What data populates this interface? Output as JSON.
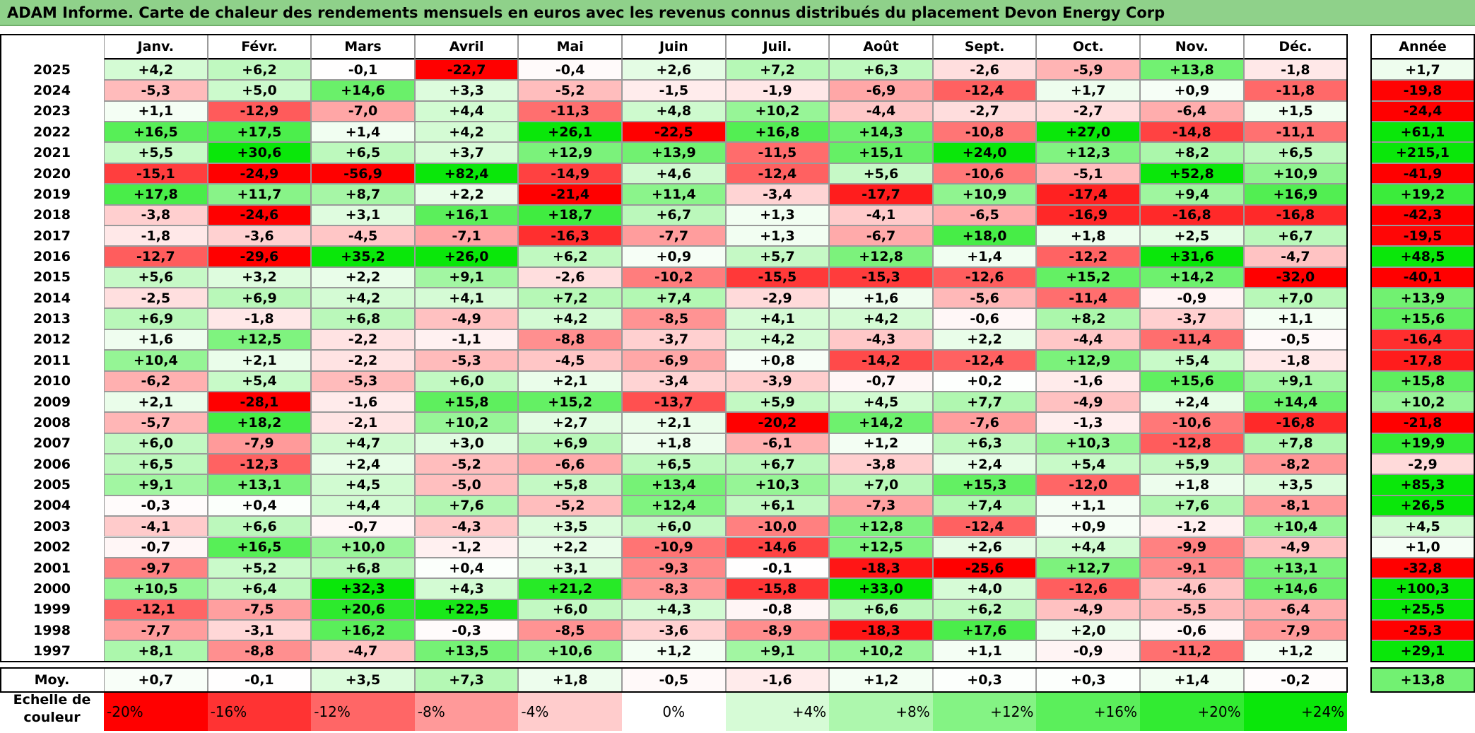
{
  "title": "ADAM Informe. Carte de chaleur des rendements mensuels en euros avec les revenus connus distribués du placement Devon Energy Corp",
  "chart_data": {
    "type": "heatmap",
    "months": [
      "Janv.",
      "Févr.",
      "Mars",
      "Avril",
      "Mai",
      "Juin",
      "Juil.",
      "Août",
      "Sept.",
      "Oct.",
      "Nov.",
      "Déc."
    ],
    "year_header": "Année",
    "rows": [
      {
        "year": "2025",
        "values": [
          "+4,2",
          "+6,2",
          "-0,1",
          "-22,7",
          "-0,4",
          "+2,6",
          "+7,2",
          "+6,3",
          "-2,6",
          "-5,9",
          "+13,8",
          "-1,8"
        ],
        "annual": "+1,7"
      },
      {
        "year": "2024",
        "values": [
          "-5,3",
          "+5,0",
          "+14,6",
          "+3,3",
          "-5,2",
          "-1,5",
          "-1,9",
          "-6,9",
          "-12,4",
          "+1,7",
          "+0,9",
          "-11,8"
        ],
        "annual": "-19,8"
      },
      {
        "year": "2023",
        "values": [
          "+1,1",
          "-12,9",
          "-7,0",
          "+4,4",
          "-11,3",
          "+4,8",
          "+10,2",
          "-4,4",
          "-2,7",
          "-2,7",
          "-6,4",
          "+1,5"
        ],
        "annual": "-24,4"
      },
      {
        "year": "2022",
        "values": [
          "+16,5",
          "+17,5",
          "+1,4",
          "+4,2",
          "+26,1",
          "-22,5",
          "+16,8",
          "+14,3",
          "-10,8",
          "+27,0",
          "-14,8",
          "-11,1"
        ],
        "annual": "+61,1"
      },
      {
        "year": "2021",
        "values": [
          "+5,5",
          "+30,6",
          "+6,5",
          "+3,7",
          "+12,9",
          "+13,9",
          "-11,5",
          "+15,1",
          "+24,0",
          "+12,3",
          "+8,2",
          "+6,5"
        ],
        "annual": "+215,1"
      },
      {
        "year": "2020",
        "values": [
          "-15,1",
          "-24,9",
          "-56,9",
          "+82,4",
          "-14,9",
          "+4,6",
          "-12,4",
          "+5,6",
          "-10,6",
          "-5,1",
          "+52,8",
          "+10,9"
        ],
        "annual": "-41,9"
      },
      {
        "year": "2019",
        "values": [
          "+17,8",
          "+11,7",
          "+8,7",
          "+2,2",
          "-21,4",
          "+11,4",
          "-3,4",
          "-17,7",
          "+10,9",
          "-17,4",
          "+9,4",
          "+16,9"
        ],
        "annual": "+19,2"
      },
      {
        "year": "2018",
        "values": [
          "-3,8",
          "-24,6",
          "+3,1",
          "+16,1",
          "+18,7",
          "+6,7",
          "+1,3",
          "-4,1",
          "-6,5",
          "-16,9",
          "-16,8",
          "-16,8"
        ],
        "annual": "-42,3"
      },
      {
        "year": "2017",
        "values": [
          "-1,8",
          "-3,6",
          "-4,5",
          "-7,1",
          "-16,3",
          "-7,7",
          "+1,3",
          "-6,7",
          "+18,0",
          "+1,8",
          "+2,5",
          "+6,7"
        ],
        "annual": "-19,5"
      },
      {
        "year": "2016",
        "values": [
          "-12,7",
          "-29,6",
          "+35,2",
          "+26,0",
          "+6,2",
          "+0,9",
          "+5,7",
          "+12,8",
          "+1,4",
          "-12,2",
          "+31,6",
          "-4,7"
        ],
        "annual": "+48,5"
      },
      {
        "year": "2015",
        "values": [
          "+5,6",
          "+3,2",
          "+2,2",
          "+9,1",
          "-2,6",
          "-10,2",
          "-15,5",
          "-15,3",
          "-12,6",
          "+15,2",
          "+14,2",
          "-32,0"
        ],
        "annual": "-40,1"
      },
      {
        "year": "2014",
        "values": [
          "-2,5",
          "+6,9",
          "+4,2",
          "+4,1",
          "+7,2",
          "+7,4",
          "-2,9",
          "+1,6",
          "-5,6",
          "-11,4",
          "-0,9",
          "+7,0"
        ],
        "annual": "+13,9"
      },
      {
        "year": "2013",
        "values": [
          "+6,9",
          "-1,8",
          "+6,8",
          "-4,9",
          "+4,2",
          "-8,5",
          "+4,1",
          "+4,2",
          "-0,6",
          "+8,2",
          "-3,7",
          "+1,1"
        ],
        "annual": "+15,6"
      },
      {
        "year": "2012",
        "values": [
          "+1,6",
          "+12,5",
          "-2,2",
          "-1,1",
          "-8,8",
          "-3,7",
          "+4,2",
          "-4,3",
          "+2,2",
          "-4,4",
          "-11,4",
          "-0,5"
        ],
        "annual": "-16,4"
      },
      {
        "year": "2011",
        "values": [
          "+10,4",
          "+2,1",
          "-2,2",
          "-5,3",
          "-4,5",
          "-6,9",
          "+0,8",
          "-14,2",
          "-12,4",
          "+12,9",
          "+5,4",
          "-1,8"
        ],
        "annual": "-17,8"
      },
      {
        "year": "2010",
        "values": [
          "-6,2",
          "+5,4",
          "-5,3",
          "+6,0",
          "+2,1",
          "-3,4",
          "-3,9",
          "-0,7",
          "+0,2",
          "-1,6",
          "+15,6",
          "+9,1"
        ],
        "annual": "+15,8"
      },
      {
        "year": "2009",
        "values": [
          "+2,1",
          "-28,1",
          "-1,6",
          "+15,8",
          "+15,2",
          "-13,7",
          "+5,9",
          "+4,5",
          "+7,7",
          "-4,9",
          "+2,4",
          "+14,4"
        ],
        "annual": "+10,2"
      },
      {
        "year": "2008",
        "values": [
          "-5,7",
          "+18,2",
          "-2,1",
          "+10,2",
          "+2,7",
          "+2,1",
          "-20,2",
          "+14,2",
          "-7,6",
          "-1,3",
          "-10,6",
          "-16,8"
        ],
        "annual": "-21,8"
      },
      {
        "year": "2007",
        "values": [
          "+6,0",
          "-7,9",
          "+4,7",
          "+3,0",
          "+6,9",
          "+1,8",
          "-6,1",
          "+1,2",
          "+6,3",
          "+10,3",
          "-12,8",
          "+7,8"
        ],
        "annual": "+19,9"
      },
      {
        "year": "2006",
        "values": [
          "+6,5",
          "-12,3",
          "+2,4",
          "-5,2",
          "-6,6",
          "+6,5",
          "+6,7",
          "-3,8",
          "+2,4",
          "+5,4",
          "+5,9",
          "-8,2"
        ],
        "annual": "-2,9"
      },
      {
        "year": "2005",
        "values": [
          "+9,1",
          "+13,1",
          "+4,5",
          "-5,0",
          "+5,8",
          "+13,4",
          "+10,3",
          "+7,0",
          "+15,3",
          "-12,0",
          "+1,8",
          "+3,5"
        ],
        "annual": "+85,3"
      },
      {
        "year": "2004",
        "values": [
          "-0,3",
          "+0,4",
          "+4,4",
          "+7,6",
          "-5,2",
          "+12,4",
          "+6,1",
          "-7,3",
          "+7,4",
          "+1,1",
          "+7,6",
          "-8,1"
        ],
        "annual": "+26,5"
      },
      {
        "year": "2003",
        "values": [
          "-4,1",
          "+6,6",
          "-0,7",
          "-4,3",
          "+3,5",
          "+6,0",
          "-10,0",
          "+12,8",
          "-12,4",
          "+0,9",
          "-1,2",
          "+10,4"
        ],
        "annual": "+4,5"
      },
      {
        "year": "2002",
        "values": [
          "-0,7",
          "+16,5",
          "+10,0",
          "-1,2",
          "+2,2",
          "-10,9",
          "-14,6",
          "+12,5",
          "+2,6",
          "+4,4",
          "-9,9",
          "-4,9"
        ],
        "annual": "+1,0"
      },
      {
        "year": "2001",
        "values": [
          "-9,7",
          "+5,2",
          "+6,8",
          "+0,4",
          "+3,1",
          "-9,3",
          "-0,1",
          "-18,3",
          "-25,6",
          "+12,7",
          "-9,1",
          "+13,1"
        ],
        "annual": "-32,8"
      },
      {
        "year": "2000",
        "values": [
          "+10,5",
          "+6,4",
          "+32,3",
          "+4,3",
          "+21,2",
          "-8,3",
          "-15,8",
          "+33,0",
          "+4,0",
          "-12,6",
          "-4,6",
          "+14,6"
        ],
        "annual": "+100,3"
      },
      {
        "year": "1999",
        "values": [
          "-12,1",
          "-7,5",
          "+20,6",
          "+22,5",
          "+6,0",
          "+4,3",
          "-0,8",
          "+6,6",
          "+6,2",
          "-4,9",
          "-5,5",
          "-6,4"
        ],
        "annual": "+25,5"
      },
      {
        "year": "1998",
        "values": [
          "-7,7",
          "-3,1",
          "+16,2",
          "-0,3",
          "-8,5",
          "-3,6",
          "-8,9",
          "-18,3",
          "+17,6",
          "+2,0",
          "-0,6",
          "-7,9"
        ],
        "annual": "-25,3"
      },
      {
        "year": "1997",
        "values": [
          "+8,1",
          "-8,8",
          "-4,7",
          "+13,5",
          "+10,6",
          "+1,2",
          "+9,1",
          "+10,2",
          "+1,1",
          "-0,9",
          "-11,2",
          "+1,2"
        ],
        "annual": "+29,1"
      }
    ],
    "average": {
      "label": "Moy.",
      "values": [
        "+0,7",
        "-0,1",
        "+3,5",
        "+7,3",
        "+1,8",
        "-0,5",
        "-1,6",
        "+1,2",
        "+0,3",
        "+0,3",
        "+1,4",
        "-0,2"
      ],
      "annual": "+13,8"
    },
    "legend": {
      "label_line1": "Echelle de",
      "label_line2": "couleur",
      "items": [
        {
          "label": "-20%",
          "value": -20,
          "color": "#ff0000"
        },
        {
          "label": "-16%",
          "value": -16,
          "color": "#ff3333"
        },
        {
          "label": "-12%",
          "value": -12,
          "color": "#ff6666"
        },
        {
          "label": "-8%",
          "value": -8,
          "color": "#ff9999"
        },
        {
          "label": "-4%",
          "value": -4,
          "color": "#ffcccc"
        },
        {
          "label": "0%",
          "value": 0,
          "color": "#ffffff"
        },
        {
          "label": "+4%",
          "value": 4,
          "color": "#d6fbd6"
        },
        {
          "label": "+8%",
          "value": 8,
          "color": "#adf7ad"
        },
        {
          "label": "+12%",
          "value": 12,
          "color": "#84f384"
        },
        {
          "label": "+16%",
          "value": 16,
          "color": "#5bef5b"
        },
        {
          "label": "+20%",
          "value": 20,
          "color": "#32eb32"
        },
        {
          "label": "+24%",
          "value": 24,
          "color": "#0ae70a"
        }
      ]
    }
  }
}
